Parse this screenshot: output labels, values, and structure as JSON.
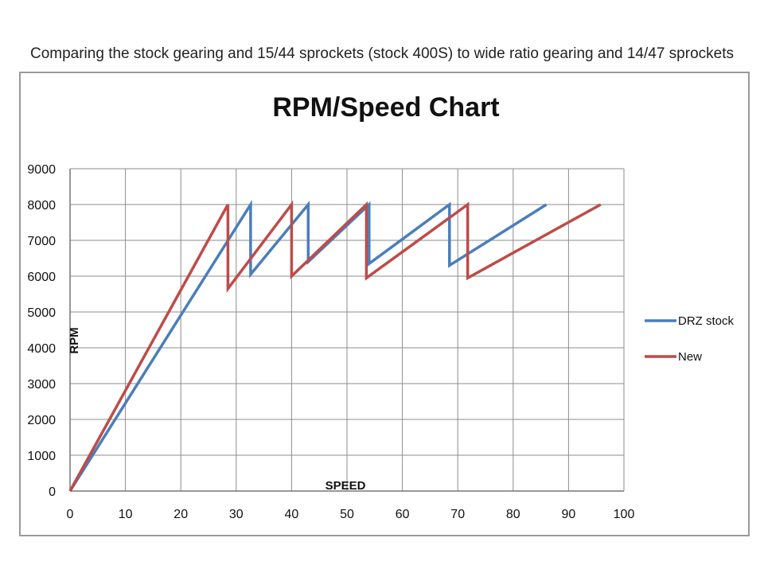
{
  "caption": "Comparing the stock gearing and 15/44 sprockets (stock 400S) to wide ratio gearing and 14/47 sprockets",
  "chart_data": {
    "type": "line",
    "title": "RPM/Speed Chart",
    "xlabel": "SPEED",
    "ylabel": "RPM",
    "xlim": [
      0,
      100
    ],
    "ylim": [
      0,
      9000
    ],
    "xticks": [
      0,
      10,
      20,
      30,
      40,
      50,
      60,
      70,
      80,
      90,
      100
    ],
    "yticks": [
      0,
      1000,
      2000,
      3000,
      4000,
      5000,
      6000,
      7000,
      8000,
      9000
    ],
    "grid": true,
    "legend": "right",
    "series": [
      {
        "name": "DRZ stock",
        "color": "#4a7ebb",
        "points": [
          [
            0,
            0
          ],
          [
            32.6,
            8000
          ],
          [
            32.6,
            6050
          ],
          [
            43,
            8000
          ],
          [
            43,
            6400
          ],
          [
            54,
            8000
          ],
          [
            54,
            6350
          ],
          [
            68.5,
            8000
          ],
          [
            68.5,
            6300
          ],
          [
            86,
            8000
          ]
        ]
      },
      {
        "name": "New",
        "color": "#be4b48",
        "points": [
          [
            0,
            0
          ],
          [
            28.5,
            8000
          ],
          [
            28.5,
            5650
          ],
          [
            40,
            8000
          ],
          [
            40,
            6000
          ],
          [
            53.5,
            8000
          ],
          [
            53.5,
            5950
          ],
          [
            71.8,
            8000
          ],
          [
            71.8,
            5950
          ],
          [
            95.8,
            8000
          ]
        ]
      }
    ]
  }
}
